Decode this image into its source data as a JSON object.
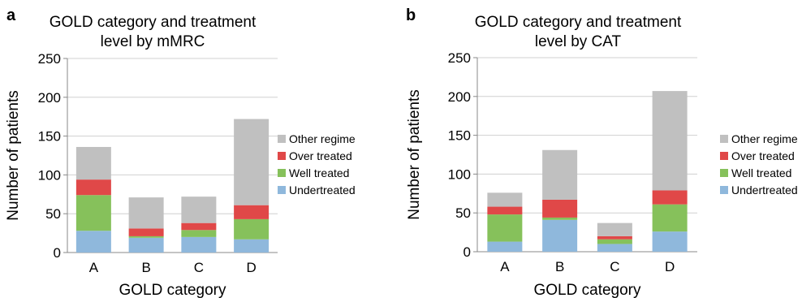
{
  "colors": {
    "Undertreated": "#8fb8dc",
    "Well treated": "#86c15b",
    "Over treated": "#e04848",
    "Other regime": "#c0c0c0",
    "grid": "#d0d0d0",
    "axis": "#888888"
  },
  "chart_data": [
    {
      "panel": "a",
      "type": "bar",
      "stacked": true,
      "title_line1": "GOLD category and treatment",
      "title_line2": "level by mMRC",
      "xlabel": "GOLD category",
      "ylabel": "Number of patients",
      "categories": [
        "A",
        "B",
        "C",
        "D"
      ],
      "ylim": [
        0,
        250
      ],
      "yticks": [
        "0",
        "50",
        "100",
        "150",
        "200",
        "250"
      ],
      "grid": true,
      "legend_position": "right",
      "legend": [
        "Other regime",
        "Over treated",
        "Well treated",
        "Undertreated"
      ],
      "series": [
        {
          "name": "Undertreated",
          "values": [
            28,
            19,
            20,
            17
          ]
        },
        {
          "name": "Well treated",
          "values": [
            46,
            2,
            9,
            26
          ]
        },
        {
          "name": "Over treated",
          "values": [
            20,
            10,
            9,
            18
          ]
        },
        {
          "name": "Other regime",
          "values": [
            42,
            40,
            34,
            111
          ]
        }
      ]
    },
    {
      "panel": "b",
      "type": "bar",
      "stacked": true,
      "title_line1": "GOLD category and treatment",
      "title_line2": "level by CAT",
      "xlabel": "GOLD category",
      "ylabel": "Number of patients",
      "categories": [
        "A",
        "B",
        "C",
        "D"
      ],
      "ylim": [
        0,
        250
      ],
      "yticks": [
        "0",
        "50",
        "100",
        "150",
        "200",
        "250"
      ],
      "grid": true,
      "legend_position": "right",
      "legend": [
        "Other regime",
        "Over treated",
        "Well treated",
        "Undertreated"
      ],
      "series": [
        {
          "name": "Undertreated",
          "values": [
            13,
            41,
            10,
            26
          ]
        },
        {
          "name": "Well treated",
          "values": [
            35,
            3,
            6,
            35
          ]
        },
        {
          "name": "Over treated",
          "values": [
            10,
            23,
            4,
            18
          ]
        },
        {
          "name": "Other regime",
          "values": [
            18,
            64,
            17,
            128
          ]
        }
      ]
    }
  ]
}
